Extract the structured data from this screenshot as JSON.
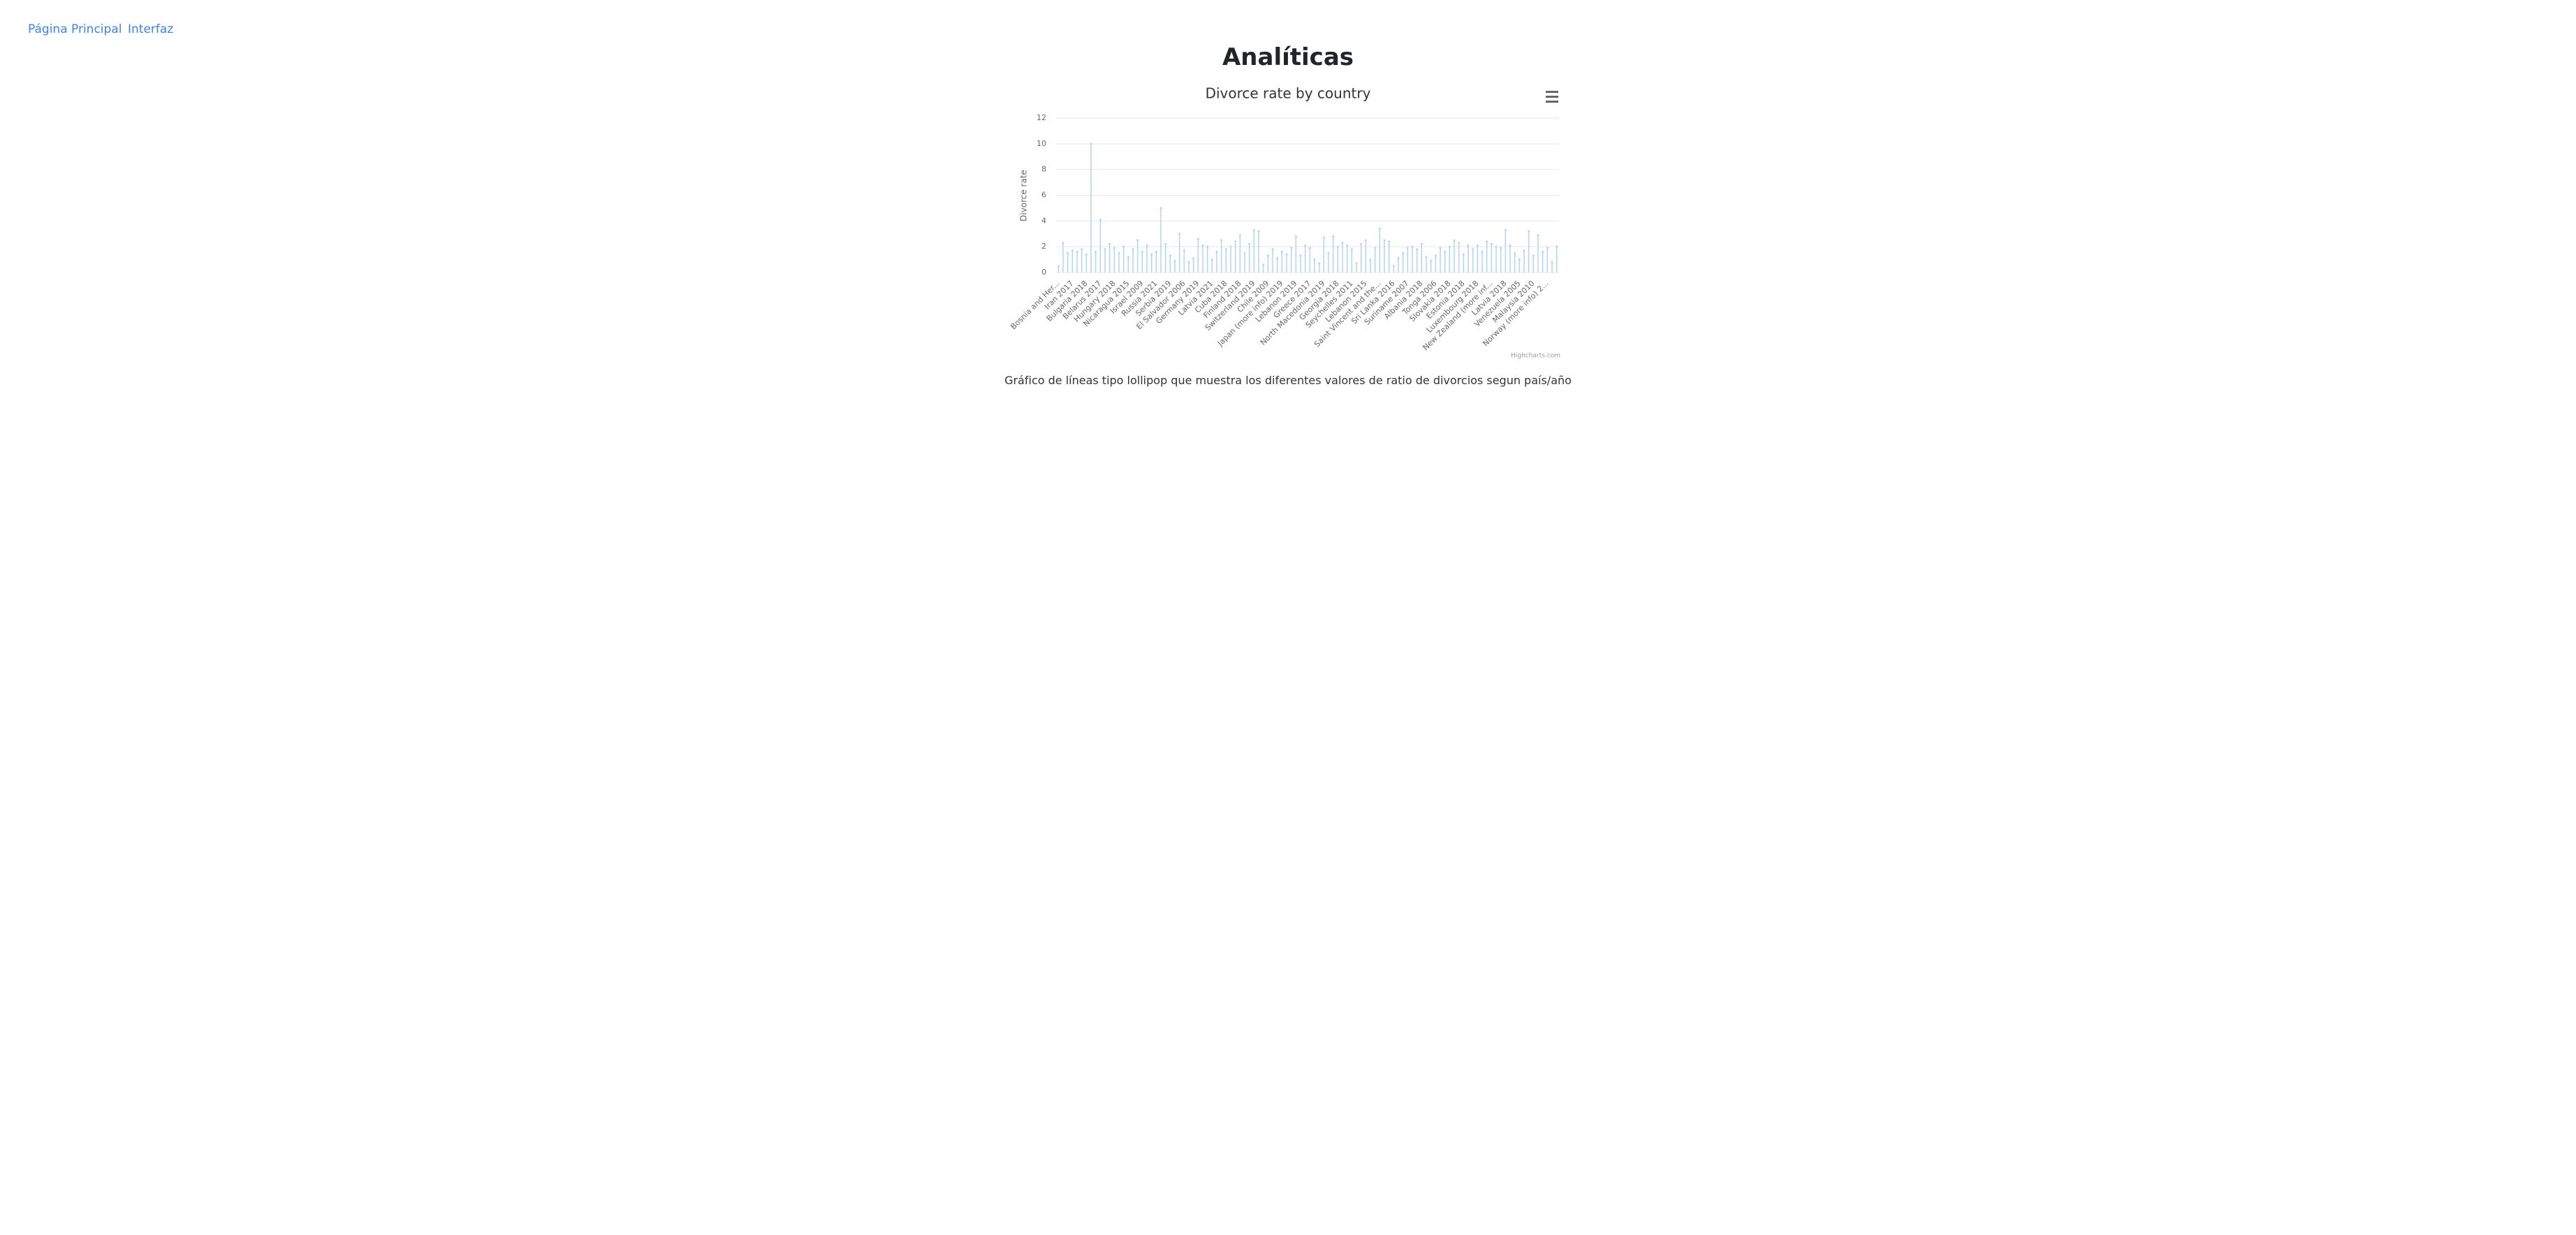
{
  "nav": [
    "Página Principal",
    "Interfaz"
  ],
  "heading": "Analíticas",
  "caption": "Gráfico de líneas tipo lollipop que muestra los diferentes valores de ratio de divorcios segun país/año",
  "chart_data": {
    "type": "lollipop",
    "title": "Divorce rate by country",
    "y_axis_title": "Divorce rate",
    "credits": "Highcharts.com",
    "color": "#b3d4ee",
    "grid": true,
    "ylim": [
      0,
      12
    ],
    "yticks": [
      0,
      2,
      4,
      6,
      8,
      10,
      12
    ],
    "categories": [
      "Bosnia and Her...",
      null,
      null,
      "Iran 2017",
      null,
      null,
      "Bulgaria 2018",
      null,
      null,
      "Belarus 2017",
      null,
      null,
      "Hungary 2018",
      null,
      null,
      "Nicaragua 2015",
      null,
      null,
      "Israel 2009",
      null,
      null,
      "Russia 2021",
      null,
      null,
      "Serbia 2019",
      null,
      null,
      "El Salvador 2006",
      null,
      null,
      "Germany 2019",
      null,
      null,
      "Latvia 2021",
      null,
      null,
      "Cuba 2018",
      null,
      null,
      "Finland 2018",
      null,
      null,
      "Switzerland 2019",
      null,
      null,
      "Chile 2009",
      null,
      null,
      "Japan (more info) 2019",
      null,
      null,
      "Lebanon 2019",
      null,
      null,
      "Greece 2017",
      null,
      null,
      "North Macedonia 2019",
      null,
      null,
      "Georgia 2018",
      null,
      null,
      "Seychelles 2011",
      null,
      null,
      "Lebanon 2015",
      null,
      null,
      "Saint Vincent and the...",
      null,
      null,
      "Sri Lanka 2016",
      null,
      null,
      "Suriname 2007",
      null,
      null,
      "Albania 2018",
      null,
      null,
      "Tonga 2006",
      null,
      null,
      "Slovakia 2018",
      null,
      null,
      "Estonia 2018",
      null,
      null,
      "Luxembourg 2018",
      null,
      null,
      "New Zealand (more inf...",
      null,
      null,
      "Latvia 2018",
      null,
      null,
      "Venezuela 2005",
      null,
      null,
      "Malaysia 2010",
      null,
      null,
      "Norway (more info) 2...",
      null,
      null
    ],
    "values": [
      0.5,
      2.3,
      1.5,
      1.7,
      1.6,
      1.8,
      1.4,
      10.0,
      1.6,
      4.1,
      1.8,
      2.2,
      1.9,
      1.5,
      2.0,
      1.2,
      1.8,
      2.5,
      1.6,
      2.1,
      1.4,
      1.6,
      5.0,
      2.2,
      1.3,
      0.9,
      3.0,
      1.7,
      0.8,
      1.1,
      2.6,
      2.1,
      2.0,
      1.0,
      1.6,
      2.5,
      1.8,
      2.0,
      2.4,
      2.9,
      1.5,
      2.2,
      3.3,
      3.2,
      0.6,
      1.3,
      1.8,
      1.1,
      1.6,
      1.4,
      1.9,
      2.8,
      1.3,
      2.1,
      1.9,
      1.0,
      0.7,
      2.7,
      1.5,
      2.8,
      2.0,
      2.3,
      2.1,
      1.8,
      0.7,
      2.2,
      2.5,
      1.0,
      1.9,
      3.4,
      2.5,
      2.4,
      0.5,
      1.1,
      1.5,
      1.9,
      2.0,
      1.8,
      2.2,
      1.2,
      0.9,
      1.3,
      1.9,
      1.6,
      2.0,
      2.5,
      2.3,
      1.4,
      2.1,
      1.8,
      2.1,
      1.6,
      2.4,
      2.2,
      2.0,
      1.9,
      3.3,
      2.1,
      1.5,
      1.0,
      1.7,
      3.2,
      1.3,
      2.9,
      1.6,
      1.9,
      0.8,
      2.0
    ]
  }
}
